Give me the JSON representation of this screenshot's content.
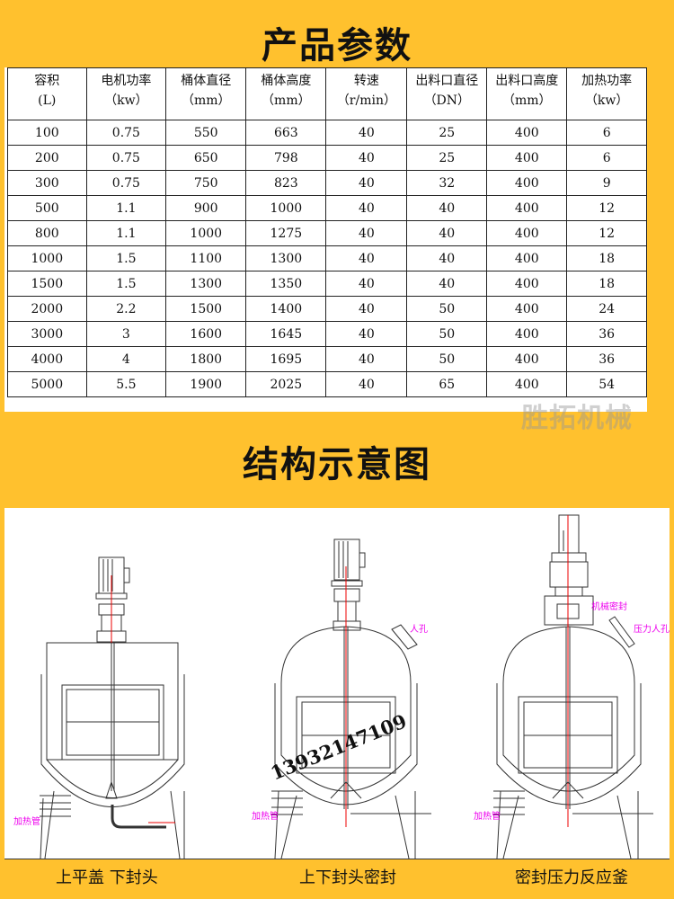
{
  "title": "产品参数",
  "table": {
    "headers": [
      [
        "容积",
        "(L)"
      ],
      [
        "电机功率",
        "（kw）"
      ],
      [
        "桶体直径",
        "（mm）"
      ],
      [
        "桶体高度",
        "（mm）"
      ],
      [
        "转速",
        "（r/min）"
      ],
      [
        "出料口直径",
        "（DN）"
      ],
      [
        "出料口高度",
        "（mm）"
      ],
      [
        "加热功率",
        "（kw）"
      ]
    ],
    "rows": [
      [
        "100",
        "0.75",
        "550",
        "663",
        "40",
        "25",
        "400",
        "6"
      ],
      [
        "200",
        "0.75",
        "650",
        "798",
        "40",
        "25",
        "400",
        "6"
      ],
      [
        "300",
        "0.75",
        "750",
        "823",
        "40",
        "32",
        "400",
        "9"
      ],
      [
        "500",
        "1.1",
        "900",
        "1000",
        "40",
        "40",
        "400",
        "12"
      ],
      [
        "800",
        "1.1",
        "1000",
        "1275",
        "40",
        "40",
        "400",
        "12"
      ],
      [
        "1000",
        "1.5",
        "1100",
        "1300",
        "40",
        "40",
        "400",
        "18"
      ],
      [
        "1500",
        "1.5",
        "1300",
        "1350",
        "40",
        "40",
        "400",
        "18"
      ],
      [
        "2000",
        "2.2",
        "1500",
        "1400",
        "40",
        "50",
        "400",
        "24"
      ],
      [
        "3000",
        "3",
        "1600",
        "1645",
        "40",
        "50",
        "400",
        "36"
      ],
      [
        "4000",
        "4",
        "1800",
        "1695",
        "40",
        "50",
        "400",
        "36"
      ],
      [
        "5000",
        "5.5",
        "1900",
        "2025",
        "40",
        "65",
        "400",
        "54"
      ]
    ]
  },
  "watermark": "胜拓机械",
  "section2_title": "结构示意图",
  "diagram": {
    "labels": {
      "heating_pipe": "加热管",
      "manhole": "人孔",
      "mech_seal": "机械密封",
      "pressure_manhole": "压力人孔"
    },
    "phone": "13932147109",
    "captions": [
      "上平盖 下封头",
      "上下封头密封",
      "密封压力反应釜"
    ]
  }
}
